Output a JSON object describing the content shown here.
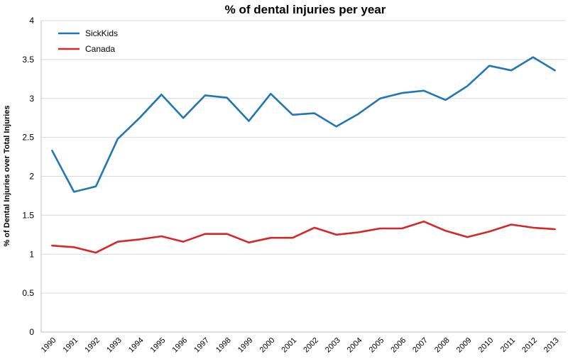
{
  "chart_data": {
    "type": "line",
    "title": "% of dental injuries per year",
    "ylabel": "% of Dental Injuries over Total Injuries",
    "xlabel": "",
    "ylim": [
      0,
      4
    ],
    "yticks": [
      0,
      0.5,
      1,
      1.5,
      2,
      2.5,
      3,
      3.5,
      4
    ],
    "ytick_labels": [
      "0",
      "0.5",
      "1",
      "1.5",
      "2",
      "2.5",
      "3",
      "3.5",
      "4"
    ],
    "grid": true,
    "legend_position": "top-left",
    "categories": [
      "1990",
      "1991",
      "1992",
      "1993",
      "1994",
      "1995",
      "1996",
      "1997",
      "1998",
      "1999",
      "2000",
      "2001",
      "2002",
      "2003",
      "2004",
      "2005",
      "2006",
      "2007",
      "2008",
      "2009",
      "2010",
      "2011",
      "2012",
      "2013"
    ],
    "series": [
      {
        "name": "SickKids",
        "color": "#1f77b4",
        "values": [
          2.33,
          1.8,
          1.87,
          2.48,
          2.75,
          3.05,
          2.75,
          3.04,
          3.01,
          2.71,
          3.06,
          2.79,
          2.81,
          2.64,
          2.8,
          3.0,
          3.07,
          3.1,
          2.98,
          3.16,
          3.42,
          3.36,
          3.53,
          3.36
        ]
      },
      {
        "name": "Canada",
        "color": "#d62728",
        "values": [
          1.11,
          1.09,
          1.02,
          1.16,
          1.19,
          1.23,
          1.16,
          1.26,
          1.26,
          1.15,
          1.21,
          1.21,
          1.34,
          1.25,
          1.28,
          1.33,
          1.33,
          1.42,
          1.3,
          1.22,
          1.29,
          1.38,
          1.34,
          1.32
        ]
      }
    ]
  }
}
